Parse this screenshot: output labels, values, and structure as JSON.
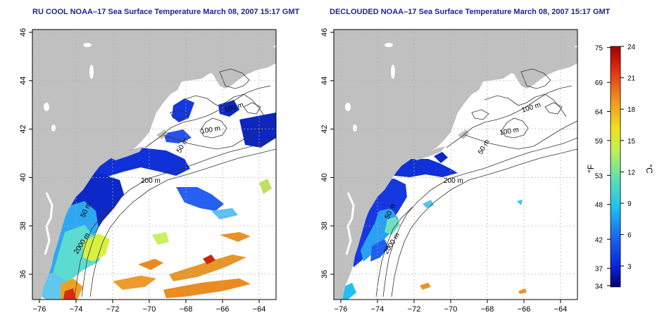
{
  "maps": [
    {
      "title": "RU COOL NOAA–17 Sea Surface Temperature March 08, 2007 15:17 GMT",
      "contour_labels": [
        "100 m",
        "100 m",
        "50 m",
        "200 m",
        "50 m",
        "2000 m"
      ]
    },
    {
      "title": "DECLOUDED NOAA–17 Sea Surface Temperature March 08, 2007 15:17 GMT",
      "contour_labels": [
        "100 m",
        "100 m",
        "50 m",
        "200 m",
        "50 m",
        "2000 m"
      ]
    }
  ],
  "axes": {
    "x_ticks": [
      "−76",
      "−74",
      "−72",
      "−70",
      "−68",
      "−66",
      "−64"
    ],
    "y_ticks": [
      "36",
      "38",
      "40",
      "42",
      "44",
      "46"
    ]
  },
  "colorbar": {
    "fahrenheit_label": "°F",
    "celsius_label": "°C",
    "fahrenheit_ticks": [
      "75",
      "69",
      "64",
      "59",
      "53",
      "48",
      "42",
      "37",
      "34"
    ],
    "celsius_ticks": [
      "24",
      "21",
      "18",
      "15",
      "12",
      "9",
      "6",
      "3"
    ],
    "colors": [
      "#08006e",
      "#0a20d8",
      "#1a70f0",
      "#20c0f0",
      "#60e0b0",
      "#c0f050",
      "#f0e020",
      "#f09020",
      "#e03010",
      "#a00000"
    ]
  },
  "colors": {
    "land": "#c0c0c0",
    "ocean": "#ffffff",
    "title": "#1f1f9a",
    "contour": "#333333",
    "grid": "#b0b0b0"
  }
}
